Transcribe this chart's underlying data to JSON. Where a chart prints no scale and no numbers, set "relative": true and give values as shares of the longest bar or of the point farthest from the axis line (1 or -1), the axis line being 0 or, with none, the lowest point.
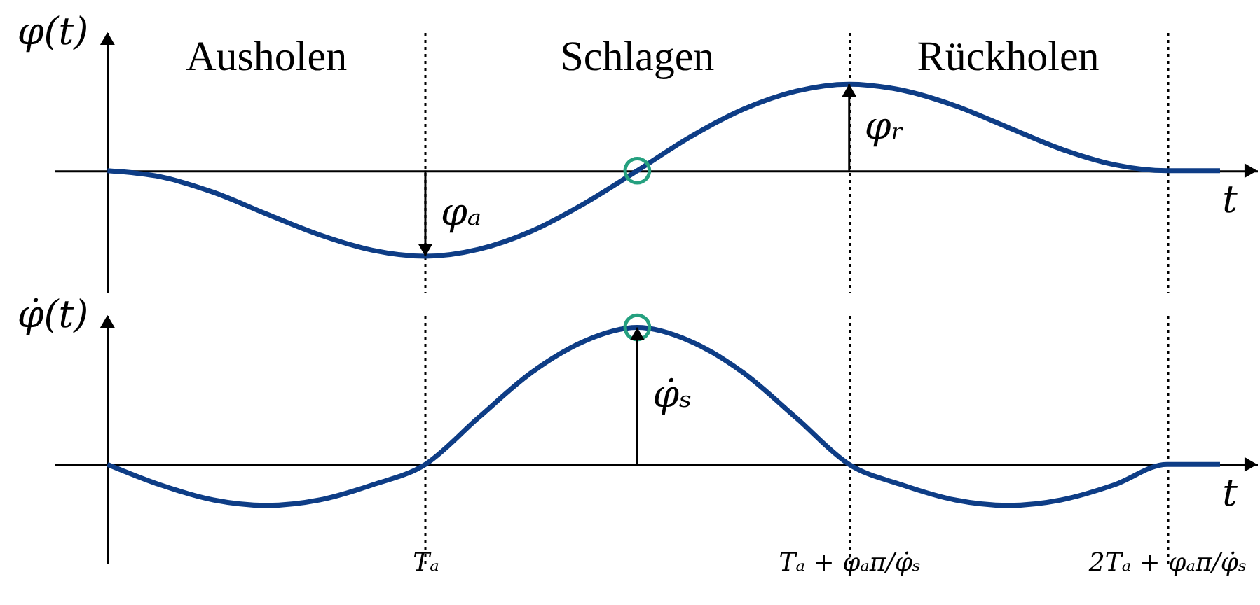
{
  "chart_data": [
    {
      "type": "line",
      "ylabel": "φ(t)",
      "xlabel": "t",
      "relative": true,
      "tick_labels": false,
      "grid": "x",
      "categories": [
        null,
        null,
        null,
        null,
        null,
        null,
        "Tₐ",
        null,
        null,
        null,
        null,
        null,
        null,
        null,
        "Tₐ + φₐπ/φ̇ₛ",
        null,
        null,
        null,
        null,
        null,
        "2Tₐ + φₐπ/φ̇ₛ",
        null
      ],
      "series": [
        {
          "color": "#0e3d86",
          "values": [
            0,
            -0.07,
            -0.25,
            -0.5,
            -0.74,
            -0.92,
            -0.99,
            -0.91,
            -0.7,
            -0.38,
            0,
            0.39,
            0.71,
            0.92,
            1,
            0.93,
            0.75,
            0.5,
            0.25,
            0.07,
            0,
            0
          ]
        },
        {
          "type": "scatter",
          "color": "#25a07f",
          "marker": "circle",
          "values": [
            null,
            null,
            null,
            null,
            null,
            null,
            null,
            null,
            null,
            null,
            0,
            null,
            null,
            null,
            null,
            null,
            null,
            null,
            null,
            null,
            null,
            null
          ]
        }
      ],
      "annotations": [
        "Ausholen",
        "Schlagen",
        "Rückholen",
        {
          "text": "φₐ",
          "x": "Tₐ",
          "y": -0.99
        },
        {
          "text": "φᵣ",
          "x": "Tₐ + φₐπ/φ̇ₛ",
          "y": 1
        }
      ]
    },
    {
      "type": "line",
      "ylabel": "φ̇(t)",
      "xlabel": "t",
      "relative": true,
      "tick_labels": "x",
      "grid": "x",
      "categories": [
        null,
        null,
        null,
        null,
        null,
        null,
        "Tₐ",
        null,
        null,
        null,
        null,
        null,
        null,
        null,
        "Tₐ + φₐπ/φ̇ₛ",
        null,
        null,
        null,
        null,
        null,
        "2Tₐ + φₐπ/φ̇ₛ",
        null
      ],
      "series": [
        {
          "color": "#0e3d86",
          "values": [
            0,
            -0.15,
            -0.26,
            -0.3,
            -0.26,
            -0.15,
            0,
            0.34,
            0.67,
            0.9,
            1,
            0.9,
            0.67,
            0.34,
            0,
            -0.15,
            -0.26,
            -0.3,
            -0.26,
            -0.15,
            0,
            0
          ]
        },
        {
          "type": "scatter",
          "color": "#25a07f",
          "marker": "circle",
          "values": [
            null,
            null,
            null,
            null,
            null,
            null,
            null,
            null,
            null,
            null,
            1,
            null,
            null,
            null,
            null,
            null,
            null,
            null,
            null,
            null,
            null,
            null
          ]
        }
      ],
      "annotations": [
        {
          "text": "φ̇ₛ",
          "y": 1
        }
      ]
    }
  ]
}
